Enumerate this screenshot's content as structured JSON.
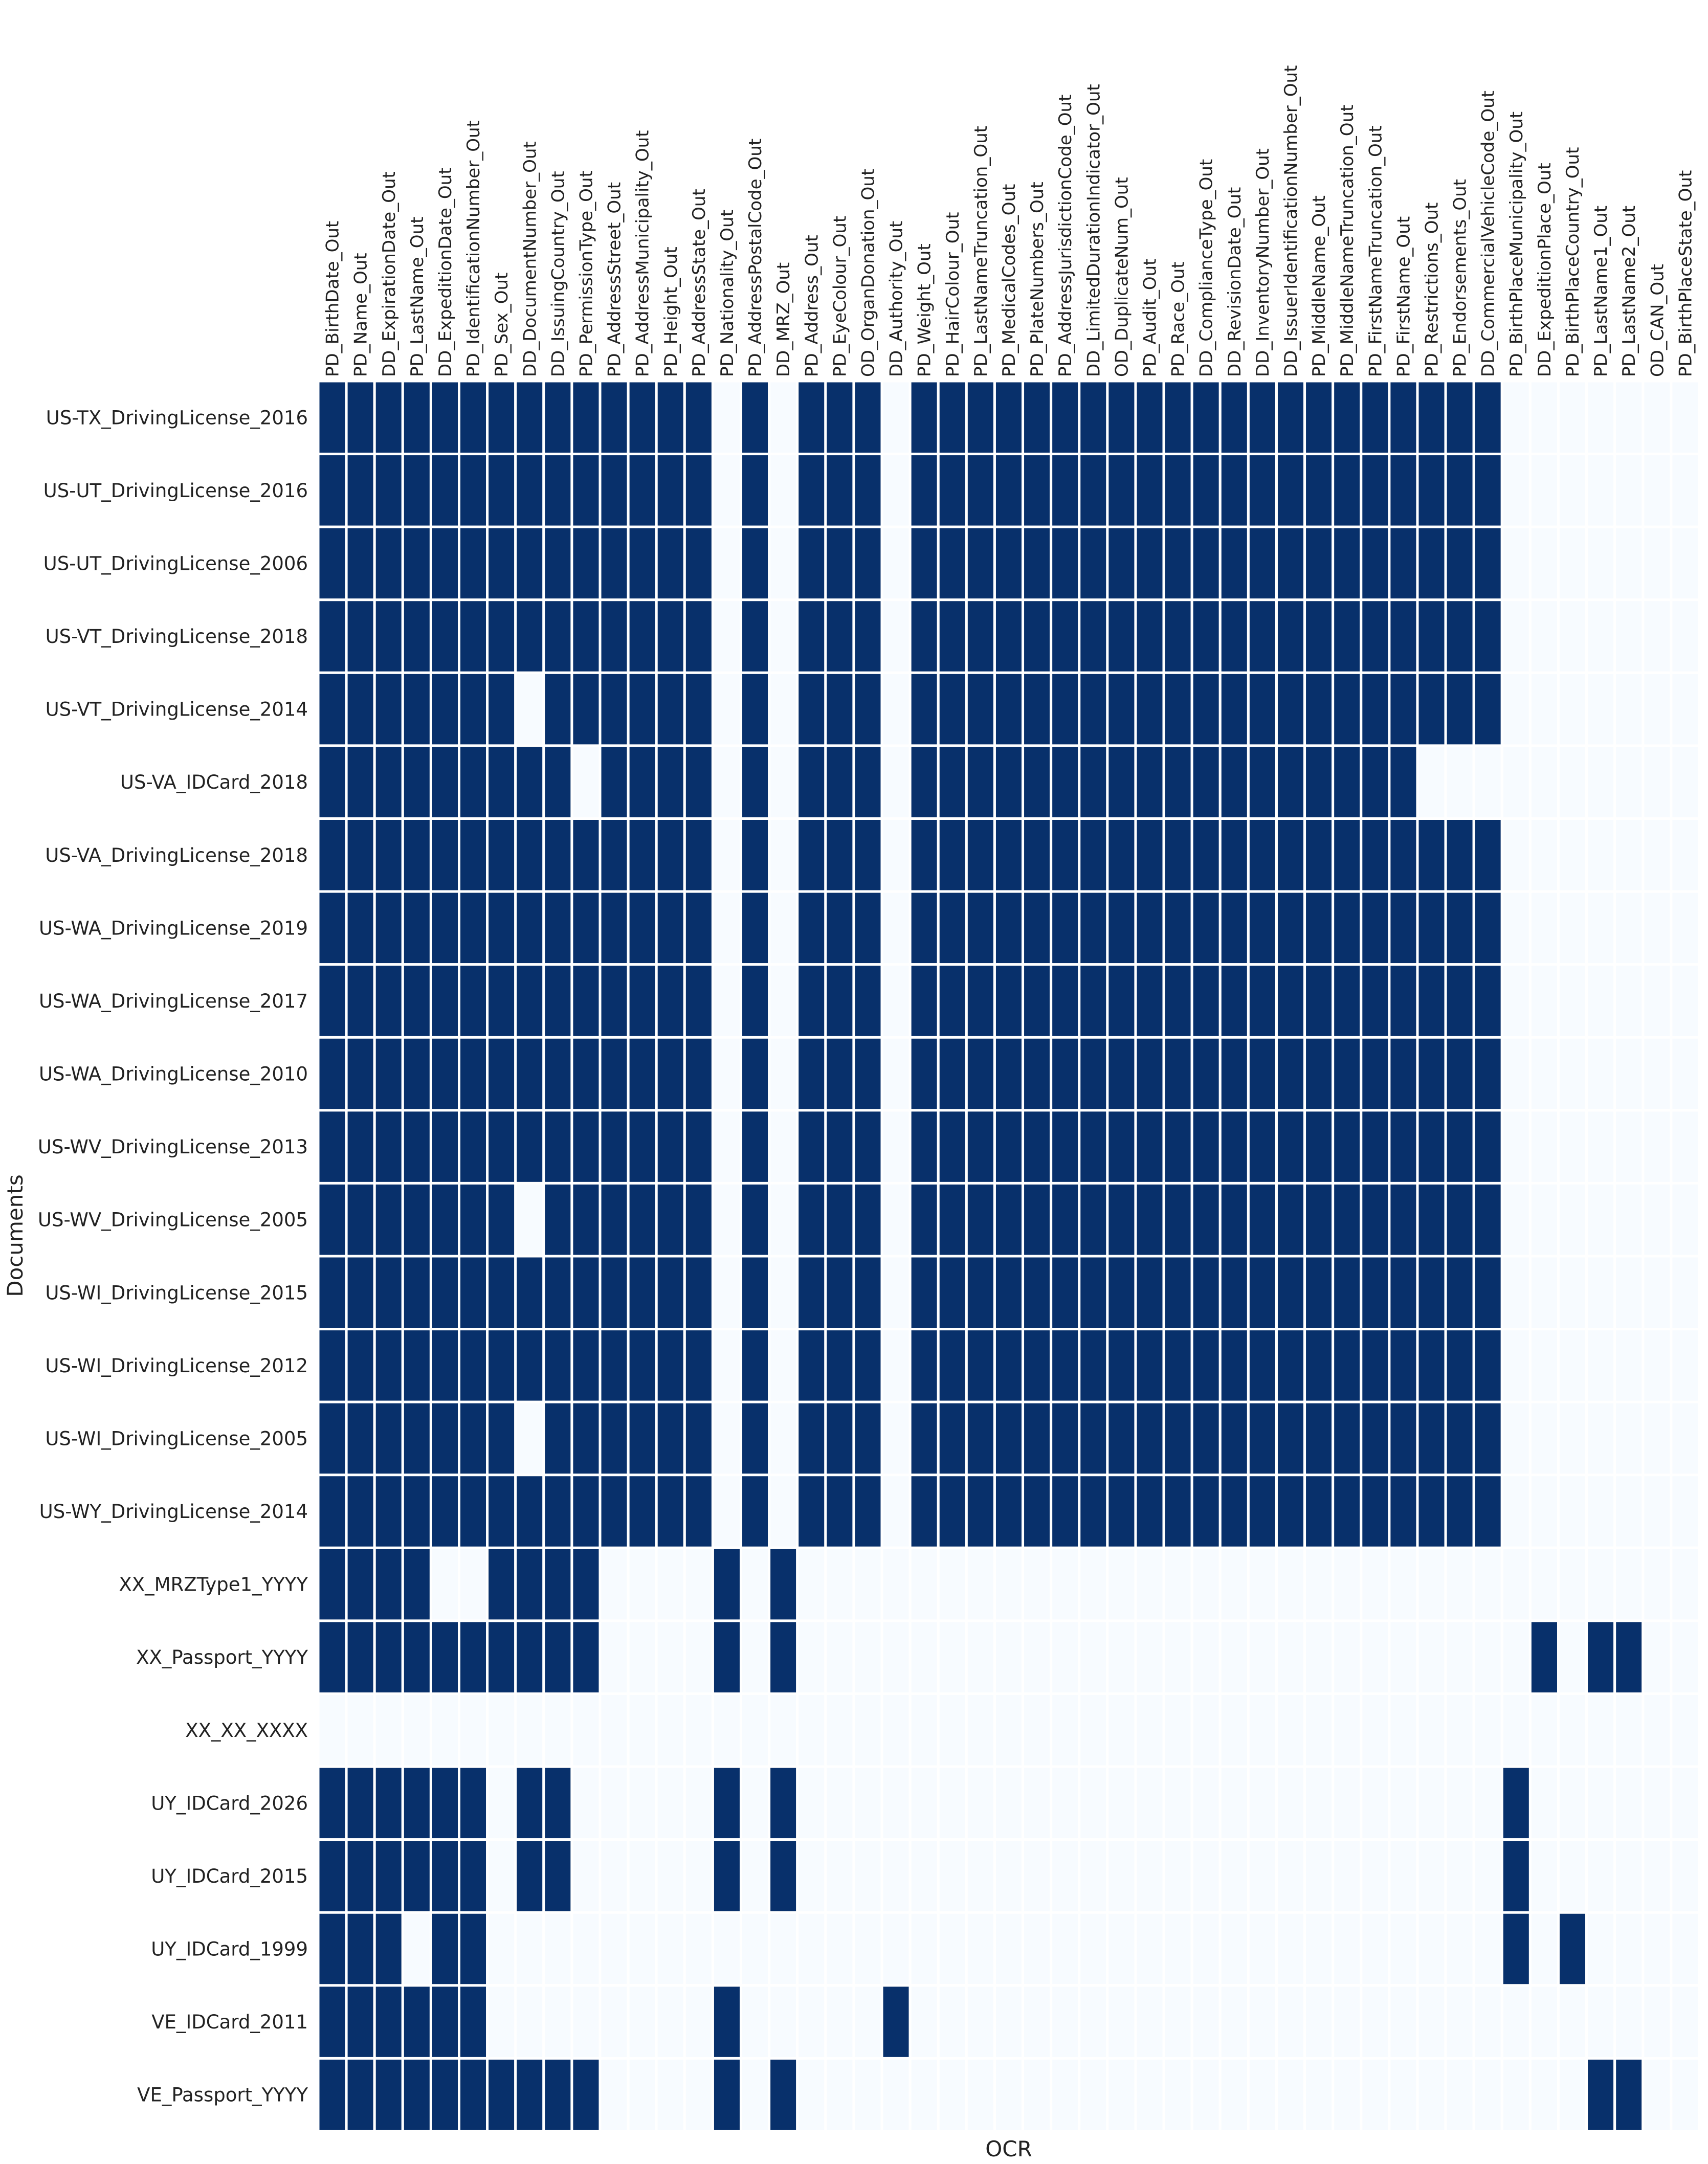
{
  "chart_data": {
    "type": "heatmap",
    "xlabel": "OCR",
    "ylabel": "Documents",
    "colors": {
      "filled": "#08306b",
      "empty": "#f7fbff",
      "separator": "#ffffff"
    },
    "columns": [
      "PD_BirthDate_Out",
      "PD_Name_Out",
      "DD_ExpirationDate_Out",
      "PD_LastName_Out",
      "DD_ExpeditionDate_Out",
      "PD_IdentificationNumber_Out",
      "PD_Sex_Out",
      "DD_DocumentNumber_Out",
      "DD_IssuingCountry_Out",
      "PD_PermissionType_Out",
      "PD_AddressStreet_Out",
      "PD_AddressMunicipality_Out",
      "PD_Height_Out",
      "PD_AddressState_Out",
      "PD_Nationality_Out",
      "PD_AddressPostalCode_Out",
      "DD_MRZ_Out",
      "PD_Address_Out",
      "PD_EyeColour_Out",
      "OD_OrganDonation_Out",
      "DD_Authority_Out",
      "PD_Weight_Out",
      "PD_HairColour_Out",
      "PD_LastNameTruncation_Out",
      "PD_MedicalCodes_Out",
      "PD_PlateNumbers_Out",
      "PD_AddressJurisdictionCode_Out",
      "DD_LimitedDurationIndicator_Out",
      "OD_DuplicateNum_Out",
      "PD_Audit_Out",
      "PD_Race_Out",
      "DD_ComplianceType_Out",
      "DD_RevisionDate_Out",
      "DD_InventoryNumber_Out",
      "DD_IssuerIdentificationNumber_Out",
      "PD_MiddleName_Out",
      "PD_MiddleNameTruncation_Out",
      "PD_FirstNameTruncation_Out",
      "PD_FirstName_Out",
      "PD_Restrictions_Out",
      "PD_Endorsements_Out",
      "DD_CommercialVehicleCode_Out",
      "PD_BirthPlaceMunicipality_Out",
      "DD_ExpeditionPlace_Out",
      "PD_BirthPlaceCountry_Out",
      "PD_LastName1_Out",
      "PD_LastName2_Out",
      "OD_CAN_Out",
      "PD_BirthPlaceState_Out"
    ],
    "rows": [
      "US-TX_DrivingLicense_2016",
      "US-UT_DrivingLicense_2016",
      "US-UT_DrivingLicense_2006",
      "US-VT_DrivingLicense_2018",
      "US-VT_DrivingLicense_2014",
      "US-VA_IDCard_2018",
      "US-VA_DrivingLicense_2018",
      "US-WA_DrivingLicense_2019",
      "US-WA_DrivingLicense_2017",
      "US-WA_DrivingLicense_2010",
      "US-WV_DrivingLicense_2013",
      "US-WV_DrivingLicense_2005",
      "US-WI_DrivingLicense_2015",
      "US-WI_DrivingLicense_2012",
      "US-WI_DrivingLicense_2005",
      "US-WY_DrivingLicense_2014",
      "XX_MRZType1_YYYY",
      "XX_Passport_YYYY",
      "XX_XX_XXXX",
      "UY_IDCard_2026",
      "UY_IDCard_2015",
      "UY_IDCard_1999",
      "VE_IDCard_2011",
      "VE_Passport_YYYY"
    ],
    "values": [
      [
        1,
        1,
        1,
        1,
        1,
        1,
        1,
        1,
        1,
        1,
        1,
        1,
        1,
        1,
        0,
        1,
        0,
        1,
        1,
        1,
        0,
        1,
        1,
        1,
        1,
        1,
        1,
        1,
        1,
        1,
        1,
        1,
        1,
        1,
        1,
        1,
        1,
        1,
        1,
        1,
        1,
        1,
        0,
        0,
        0,
        0,
        0,
        0,
        0
      ],
      [
        1,
        1,
        1,
        1,
        1,
        1,
        1,
        1,
        1,
        1,
        1,
        1,
        1,
        1,
        0,
        1,
        0,
        1,
        1,
        1,
        0,
        1,
        1,
        1,
        1,
        1,
        1,
        1,
        1,
        1,
        1,
        1,
        1,
        1,
        1,
        1,
        1,
        1,
        1,
        1,
        1,
        1,
        0,
        0,
        0,
        0,
        0,
        0,
        0
      ],
      [
        1,
        1,
        1,
        1,
        1,
        1,
        1,
        1,
        1,
        1,
        1,
        1,
        1,
        1,
        0,
        1,
        0,
        1,
        1,
        1,
        0,
        1,
        1,
        1,
        1,
        1,
        1,
        1,
        1,
        1,
        1,
        1,
        1,
        1,
        1,
        1,
        1,
        1,
        1,
        1,
        1,
        1,
        0,
        0,
        0,
        0,
        0,
        0,
        0
      ],
      [
        1,
        1,
        1,
        1,
        1,
        1,
        1,
        1,
        1,
        1,
        1,
        1,
        1,
        1,
        0,
        1,
        0,
        1,
        1,
        1,
        0,
        1,
        1,
        1,
        1,
        1,
        1,
        1,
        1,
        1,
        1,
        1,
        1,
        1,
        1,
        1,
        1,
        1,
        1,
        1,
        1,
        1,
        0,
        0,
        0,
        0,
        0,
        0,
        0
      ],
      [
        1,
        1,
        1,
        1,
        1,
        1,
        1,
        0,
        1,
        1,
        1,
        1,
        1,
        1,
        0,
        1,
        0,
        1,
        1,
        1,
        0,
        1,
        1,
        1,
        1,
        1,
        1,
        1,
        1,
        1,
        1,
        1,
        1,
        1,
        1,
        1,
        1,
        1,
        1,
        1,
        1,
        1,
        0,
        0,
        0,
        0,
        0,
        0,
        0
      ],
      [
        1,
        1,
        1,
        1,
        1,
        1,
        1,
        1,
        1,
        0,
        1,
        1,
        1,
        1,
        0,
        1,
        0,
        1,
        1,
        1,
        0,
        1,
        1,
        1,
        1,
        1,
        1,
        1,
        1,
        1,
        1,
        1,
        1,
        1,
        1,
        1,
        1,
        1,
        1,
        0,
        0,
        0,
        0,
        0,
        0,
        0,
        0,
        0,
        0
      ],
      [
        1,
        1,
        1,
        1,
        1,
        1,
        1,
        1,
        1,
        1,
        1,
        1,
        1,
        1,
        0,
        1,
        0,
        1,
        1,
        1,
        0,
        1,
        1,
        1,
        1,
        1,
        1,
        1,
        1,
        1,
        1,
        1,
        1,
        1,
        1,
        1,
        1,
        1,
        1,
        1,
        1,
        1,
        0,
        0,
        0,
        0,
        0,
        0,
        0
      ],
      [
        1,
        1,
        1,
        1,
        1,
        1,
        1,
        1,
        1,
        1,
        1,
        1,
        1,
        1,
        0,
        1,
        0,
        1,
        1,
        1,
        0,
        1,
        1,
        1,
        1,
        1,
        1,
        1,
        1,
        1,
        1,
        1,
        1,
        1,
        1,
        1,
        1,
        1,
        1,
        1,
        1,
        1,
        0,
        0,
        0,
        0,
        0,
        0,
        0
      ],
      [
        1,
        1,
        1,
        1,
        1,
        1,
        1,
        1,
        1,
        1,
        1,
        1,
        1,
        1,
        0,
        1,
        0,
        1,
        1,
        1,
        0,
        1,
        1,
        1,
        1,
        1,
        1,
        1,
        1,
        1,
        1,
        1,
        1,
        1,
        1,
        1,
        1,
        1,
        1,
        1,
        1,
        1,
        0,
        0,
        0,
        0,
        0,
        0,
        0
      ],
      [
        1,
        1,
        1,
        1,
        1,
        1,
        1,
        1,
        1,
        1,
        1,
        1,
        1,
        1,
        0,
        1,
        0,
        1,
        1,
        1,
        0,
        1,
        1,
        1,
        1,
        1,
        1,
        1,
        1,
        1,
        1,
        1,
        1,
        1,
        1,
        1,
        1,
        1,
        1,
        1,
        1,
        1,
        0,
        0,
        0,
        0,
        0,
        0,
        0
      ],
      [
        1,
        1,
        1,
        1,
        1,
        1,
        1,
        1,
        1,
        1,
        1,
        1,
        1,
        1,
        0,
        1,
        0,
        1,
        1,
        1,
        0,
        1,
        1,
        1,
        1,
        1,
        1,
        1,
        1,
        1,
        1,
        1,
        1,
        1,
        1,
        1,
        1,
        1,
        1,
        1,
        1,
        1,
        0,
        0,
        0,
        0,
        0,
        0,
        0
      ],
      [
        1,
        1,
        1,
        1,
        1,
        1,
        1,
        0,
        1,
        1,
        1,
        1,
        1,
        1,
        0,
        1,
        0,
        1,
        1,
        1,
        0,
        1,
        1,
        1,
        1,
        1,
        1,
        1,
        1,
        1,
        1,
        1,
        1,
        1,
        1,
        1,
        1,
        1,
        1,
        1,
        1,
        1,
        0,
        0,
        0,
        0,
        0,
        0,
        0
      ],
      [
        1,
        1,
        1,
        1,
        1,
        1,
        1,
        1,
        1,
        1,
        1,
        1,
        1,
        1,
        0,
        1,
        0,
        1,
        1,
        1,
        0,
        1,
        1,
        1,
        1,
        1,
        1,
        1,
        1,
        1,
        1,
        1,
        1,
        1,
        1,
        1,
        1,
        1,
        1,
        1,
        1,
        1,
        0,
        0,
        0,
        0,
        0,
        0,
        0
      ],
      [
        1,
        1,
        1,
        1,
        1,
        1,
        1,
        1,
        1,
        1,
        1,
        1,
        1,
        1,
        0,
        1,
        0,
        1,
        1,
        1,
        0,
        1,
        1,
        1,
        1,
        1,
        1,
        1,
        1,
        1,
        1,
        1,
        1,
        1,
        1,
        1,
        1,
        1,
        1,
        1,
        1,
        1,
        0,
        0,
        0,
        0,
        0,
        0,
        0
      ],
      [
        1,
        1,
        1,
        1,
        1,
        1,
        1,
        0,
        1,
        1,
        1,
        1,
        1,
        1,
        0,
        1,
        0,
        1,
        1,
        1,
        0,
        1,
        1,
        1,
        1,
        1,
        1,
        1,
        1,
        1,
        1,
        1,
        1,
        1,
        1,
        1,
        1,
        1,
        1,
        1,
        1,
        1,
        0,
        0,
        0,
        0,
        0,
        0,
        0
      ],
      [
        1,
        1,
        1,
        1,
        1,
        1,
        1,
        1,
        1,
        1,
        1,
        1,
        1,
        1,
        0,
        1,
        0,
        1,
        1,
        1,
        0,
        1,
        1,
        1,
        1,
        1,
        1,
        1,
        1,
        1,
        1,
        1,
        1,
        1,
        1,
        1,
        1,
        1,
        1,
        1,
        1,
        1,
        0,
        0,
        0,
        0,
        0,
        0,
        0
      ],
      [
        1,
        1,
        1,
        1,
        0,
        0,
        1,
        1,
        1,
        1,
        0,
        0,
        0,
        0,
        1,
        0,
        1,
        0,
        0,
        0,
        0,
        0,
        0,
        0,
        0,
        0,
        0,
        0,
        0,
        0,
        0,
        0,
        0,
        0,
        0,
        0,
        0,
        0,
        0,
        0,
        0,
        0,
        0,
        0,
        0,
        0,
        0,
        0,
        0
      ],
      [
        1,
        1,
        1,
        1,
        1,
        1,
        1,
        1,
        1,
        1,
        0,
        0,
        0,
        0,
        1,
        0,
        1,
        0,
        0,
        0,
        0,
        0,
        0,
        0,
        0,
        0,
        0,
        0,
        0,
        0,
        0,
        0,
        0,
        0,
        0,
        0,
        0,
        0,
        0,
        0,
        0,
        0,
        0,
        1,
        0,
        1,
        1,
        0,
        0
      ],
      [
        0,
        0,
        0,
        0,
        0,
        0,
        0,
        0,
        0,
        0,
        0,
        0,
        0,
        0,
        0,
        0,
        0,
        0,
        0,
        0,
        0,
        0,
        0,
        0,
        0,
        0,
        0,
        0,
        0,
        0,
        0,
        0,
        0,
        0,
        0,
        0,
        0,
        0,
        0,
        0,
        0,
        0,
        0,
        0,
        0,
        0,
        0,
        0,
        0
      ],
      [
        1,
        1,
        1,
        1,
        1,
        1,
        0,
        1,
        1,
        0,
        0,
        0,
        0,
        0,
        1,
        0,
        1,
        0,
        0,
        0,
        0,
        0,
        0,
        0,
        0,
        0,
        0,
        0,
        0,
        0,
        0,
        0,
        0,
        0,
        0,
        0,
        0,
        0,
        0,
        0,
        0,
        0,
        1,
        0,
        0,
        0,
        0,
        0,
        0
      ],
      [
        1,
        1,
        1,
        1,
        1,
        1,
        0,
        1,
        1,
        0,
        0,
        0,
        0,
        0,
        1,
        0,
        1,
        0,
        0,
        0,
        0,
        0,
        0,
        0,
        0,
        0,
        0,
        0,
        0,
        0,
        0,
        0,
        0,
        0,
        0,
        0,
        0,
        0,
        0,
        0,
        0,
        0,
        1,
        0,
        0,
        0,
        0,
        0,
        0
      ],
      [
        1,
        1,
        1,
        0,
        1,
        1,
        0,
        0,
        0,
        0,
        0,
        0,
        0,
        0,
        0,
        0,
        0,
        0,
        0,
        0,
        0,
        0,
        0,
        0,
        0,
        0,
        0,
        0,
        0,
        0,
        0,
        0,
        0,
        0,
        0,
        0,
        0,
        0,
        0,
        0,
        0,
        0,
        1,
        0,
        1,
        0,
        0,
        0,
        0
      ],
      [
        1,
        1,
        1,
        1,
        1,
        1,
        0,
        0,
        0,
        0,
        0,
        0,
        0,
        0,
        1,
        0,
        0,
        0,
        0,
        0,
        1,
        0,
        0,
        0,
        0,
        0,
        0,
        0,
        0,
        0,
        0,
        0,
        0,
        0,
        0,
        0,
        0,
        0,
        0,
        0,
        0,
        0,
        0,
        0,
        0,
        0,
        0,
        0,
        0
      ],
      [
        1,
        1,
        1,
        1,
        1,
        1,
        1,
        1,
        1,
        1,
        0,
        0,
        0,
        0,
        1,
        0,
        1,
        0,
        0,
        0,
        0,
        0,
        0,
        0,
        0,
        0,
        0,
        0,
        0,
        0,
        0,
        0,
        0,
        0,
        0,
        0,
        0,
        0,
        0,
        0,
        0,
        0,
        0,
        0,
        0,
        1,
        1,
        0,
        0
      ]
    ]
  }
}
